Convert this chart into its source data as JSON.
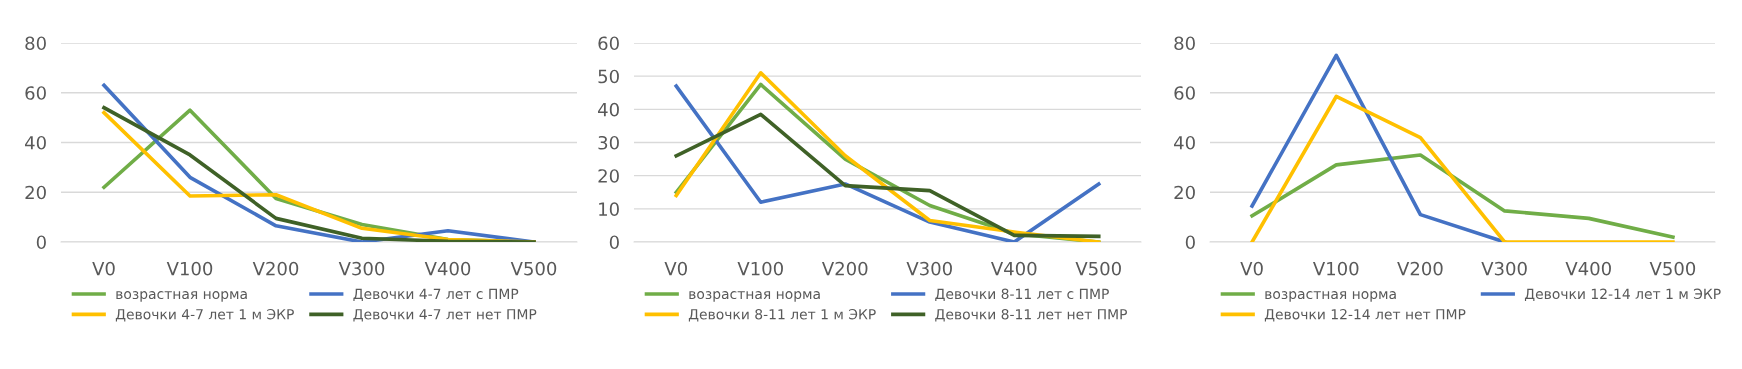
{
  "chart_data": [
    {
      "type": "line",
      "categories": [
        "V0",
        "V100",
        "V200",
        "V300",
        "V400",
        "V500"
      ],
      "ylim": [
        0,
        80
      ],
      "yticks": [
        0,
        20,
        40,
        60,
        80
      ],
      "grid": "y",
      "legend": "bottom",
      "series": [
        {
          "name": "возрастная норма",
          "color": "#70ad47",
          "values": [
            22,
            53,
            17.5,
            7,
            1,
            0
          ]
        },
        {
          "name": "Девочки 4-7 лет с ПМР",
          "color": "#4472c4",
          "values": [
            63,
            26,
            6.5,
            0,
            4.5,
            0
          ]
        },
        {
          "name": "Девочки 4-7 лет 1 м ЭКР",
          "color": "#ffc000",
          "values": [
            52,
            18.5,
            19,
            5.5,
            1,
            0
          ]
        },
        {
          "name": "Девочки 4-7 лет нет ПМР",
          "color": "#3f6127",
          "values": [
            54,
            35,
            9.5,
            1.5,
            0.3,
            0
          ]
        }
      ]
    },
    {
      "type": "line",
      "categories": [
        "V0",
        "V100",
        "V200",
        "V300",
        "V400",
        "V500"
      ],
      "ylim": [
        0,
        60
      ],
      "yticks": [
        0,
        10,
        20,
        30,
        40,
        50,
        60
      ],
      "grid": "y",
      "legend": "bottom",
      "series": [
        {
          "name": "возрастная норма",
          "color": "#70ad47",
          "values": [
            15,
            47.5,
            25,
            11,
            2.5,
            0
          ]
        },
        {
          "name": "Девочки 8-11 лет с ПМР",
          "color": "#4472c4",
          "values": [
            47,
            12,
            17.5,
            6,
            0,
            17.5
          ]
        },
        {
          "name": "Девочки 8-11 лет 1 м ЭКР",
          "color": "#ffc000",
          "values": [
            14,
            51,
            26,
            6.5,
            3,
            0
          ]
        },
        {
          "name": "Девочки 8-11 лет нет ПМР",
          "color": "#3f6127",
          "values": [
            26,
            38.5,
            17,
            15.5,
            2,
            1.7
          ]
        }
      ]
    },
    {
      "type": "line",
      "categories": [
        "V0",
        "V100",
        "V200",
        "V300",
        "V400",
        "V500"
      ],
      "ylim": [
        0,
        80
      ],
      "yticks": [
        0,
        20,
        40,
        60,
        80
      ],
      "grid": "y",
      "legend": "bottom",
      "series": [
        {
          "name": "возрастная норма",
          "color": "#70ad47",
          "values": [
            10.5,
            31,
            35,
            12.5,
            9.5,
            2
          ]
        },
        {
          "name": "Девочки 12-14 лет 1 м ЭКР",
          "color": "#4472c4",
          "values": [
            14.5,
            75,
            11,
            0,
            null,
            null
          ]
        },
        {
          "name": "Девочки 12-14 лет нет ПМР",
          "color": "#ffc000",
          "values": [
            0,
            58.5,
            42,
            0,
            0,
            0
          ]
        }
      ]
    }
  ]
}
